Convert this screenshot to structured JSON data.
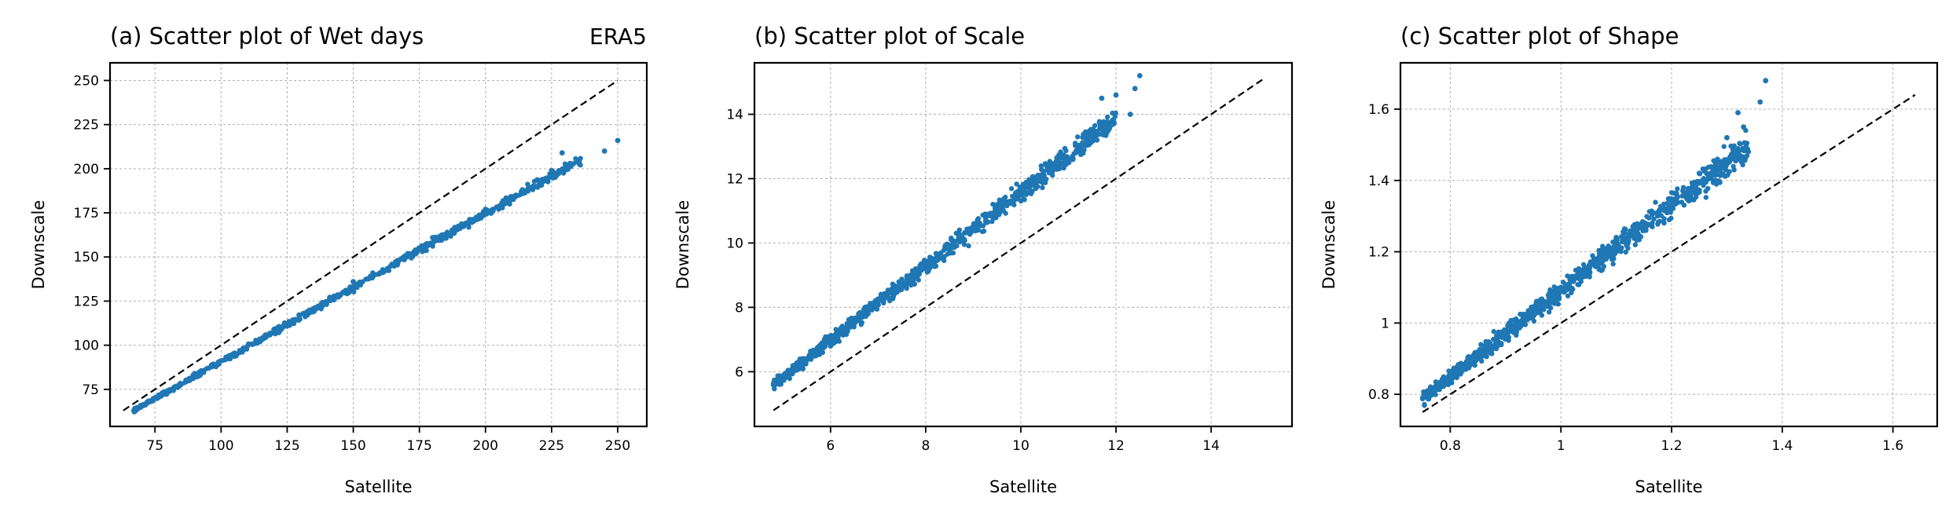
{
  "figure": {
    "corner_label": "ERA5"
  },
  "colors": {
    "points": "#1f77b4",
    "identity_line": "#000000",
    "grid": "#b0b0b0",
    "axes": "#000000"
  },
  "chart_data": [
    {
      "type": "scatter",
      "title": "(a) Scatter plot of Wet days",
      "xlabel": "Satellite",
      "ylabel": "Downscale",
      "xlim": [
        58,
        261
      ],
      "ylim": [
        54,
        260
      ],
      "xticks": [
        75,
        100,
        125,
        150,
        175,
        200,
        225,
        250
      ],
      "yticks": [
        75,
        100,
        125,
        150,
        175,
        200,
        225,
        250
      ],
      "grid": true,
      "reference_line": {
        "style": "dashed",
        "from": [
          63,
          63
        ],
        "to": [
          250,
          250
        ]
      },
      "trend": {
        "x_min": 67,
        "x_max": 236,
        "y_at_min": 63,
        "y_at_max": 205,
        "spread": 2.5,
        "n": 700
      },
      "sample_points": [
        [
          67,
          63
        ],
        [
          90,
          84
        ],
        [
          120,
          109
        ],
        [
          150,
          136
        ],
        [
          180,
          161
        ],
        [
          200,
          177
        ],
        [
          225,
          199
        ],
        [
          229,
          209
        ],
        [
          232,
          203
        ],
        [
          245,
          210
        ],
        [
          250,
          216
        ]
      ]
    },
    {
      "type": "scatter",
      "title": "(b) Scatter plot of Scale",
      "xlabel": "Satellite",
      "ylabel": "Downscale",
      "xlim": [
        4.4,
        15.7
      ],
      "ylim": [
        4.3,
        15.6
      ],
      "xticks": [
        6,
        8,
        10,
        12,
        14
      ],
      "yticks": [
        6,
        8,
        10,
        12,
        14
      ],
      "grid": true,
      "reference_line": {
        "style": "dashed",
        "from": [
          4.8,
          4.8
        ],
        "to": [
          15.1,
          15.1
        ]
      },
      "trend": {
        "x_min": 4.8,
        "x_max": 12.0,
        "y_at_min": 5.6,
        "y_at_max": 13.9,
        "spread": 0.35,
        "n": 900
      },
      "sample_points": [
        [
          4.8,
          5.6
        ],
        [
          6.0,
          6.8
        ],
        [
          8.0,
          9.2
        ],
        [
          10.0,
          11.5
        ],
        [
          11.5,
          13.5
        ],
        [
          11.7,
          14.5
        ],
        [
          12.0,
          14.6
        ],
        [
          12.4,
          14.8
        ],
        [
          12.5,
          15.2
        ],
        [
          12.3,
          14.0
        ],
        [
          11.6,
          13.2
        ]
      ]
    },
    {
      "type": "scatter",
      "title": "(c) Scatter plot of Shape",
      "xlabel": "Satellite",
      "ylabel": "Downscale",
      "xlim": [
        0.71,
        1.68
      ],
      "ylim": [
        0.71,
        1.73
      ],
      "xticks": [
        0.8,
        1.0,
        1.2,
        1.4,
        1.6
      ],
      "yticks": [
        0.8,
        1.0,
        1.2,
        1.4,
        1.6
      ],
      "grid": true,
      "reference_line": {
        "style": "dashed",
        "from": [
          0.75,
          0.75
        ],
        "to": [
          1.64,
          1.64
        ]
      },
      "trend": {
        "x_min": 0.75,
        "x_max": 1.34,
        "y_at_min": 0.79,
        "y_at_max": 1.5,
        "spread": 0.04,
        "n": 900
      },
      "sample_points": [
        [
          0.75,
          0.79
        ],
        [
          0.9,
          0.97
        ],
        [
          1.0,
          1.1
        ],
        [
          1.1,
          1.24
        ],
        [
          1.25,
          1.42
        ],
        [
          1.3,
          1.52
        ],
        [
          1.32,
          1.59
        ],
        [
          1.36,
          1.62
        ],
        [
          1.37,
          1.68
        ],
        [
          1.33,
          1.55
        ],
        [
          1.28,
          1.45
        ]
      ]
    }
  ]
}
